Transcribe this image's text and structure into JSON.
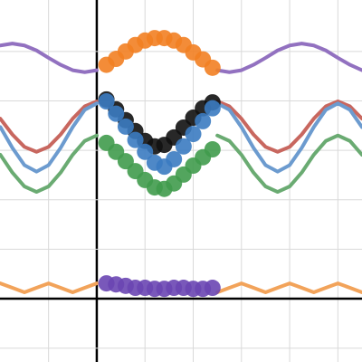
{
  "chart_data": {
    "type": "line",
    "xlim": [
      -2.007,
      5.5
    ],
    "ylim": [
      -1.28,
      6.04
    ],
    "xticks": [
      -1,
      0,
      1,
      2,
      3,
      4,
      5
    ],
    "yticks": [
      -1,
      0,
      1,
      2,
      3,
      4,
      5
    ],
    "grid": true,
    "series": [
      {
        "type": "line",
        "color": "#9271c0",
        "x": [
          -2,
          -1.75,
          -1.5,
          -1.25,
          -1,
          -0.75,
          -0.5,
          -0.25,
          0,
          0.25,
          0.5,
          0.75,
          1,
          1.25,
          1.5,
          1.75,
          2,
          2.25,
          2.5,
          2.75,
          3,
          3.25,
          3.5,
          3.75,
          4,
          4.25,
          4.5,
          4.75,
          5,
          5.25,
          5.5
        ],
        "values": [
          5.12,
          5.16,
          5.12,
          5.02,
          4.87,
          4.73,
          4.62,
          4.58,
          4.62,
          null,
          null,
          null,
          null,
          null,
          null,
          null,
          null,
          null,
          4.62,
          4.58,
          4.62,
          4.73,
          4.87,
          5.02,
          5.12,
          5.16,
          5.12,
          5.02,
          4.87,
          4.73,
          4.62
        ]
      },
      {
        "type": "line",
        "color": "#c8675f",
        "x": [
          -2,
          -1.75,
          -1.5,
          -1.25,
          -1,
          -0.75,
          -0.5,
          -0.25,
          0,
          0.25,
          0.5,
          0.75,
          1,
          1.25,
          1.5,
          1.75,
          2,
          2.25,
          2.5,
          2.75,
          3,
          3.25,
          3.5,
          3.75,
          4,
          4.25,
          4.5,
          4.75,
          5,
          5.25,
          5.5
        ],
        "values": [
          3.64,
          3.32,
          3.07,
          2.97,
          3.07,
          3.32,
          3.64,
          3.89,
          3.99,
          null,
          null,
          null,
          null,
          null,
          null,
          null,
          null,
          null,
          3.99,
          3.89,
          3.64,
          3.32,
          3.07,
          2.97,
          3.07,
          3.32,
          3.64,
          3.89,
          3.99,
          3.89,
          3.64
        ]
      },
      {
        "type": "line",
        "color": "#6c9bcf",
        "x": [
          -2,
          -1.75,
          -1.5,
          -1.25,
          -1,
          -0.75,
          -0.5,
          -0.25,
          0,
          0.25,
          0.5,
          0.75,
          1,
          1.25,
          1.5,
          1.75,
          2,
          2.25,
          2.5,
          2.75,
          3,
          3.25,
          3.5,
          3.75,
          4,
          4.25,
          4.5,
          4.75,
          5,
          5.25,
          5.5
        ],
        "values": [
          3.47,
          3.05,
          2.7,
          2.57,
          2.7,
          3.05,
          3.47,
          3.82,
          3.95,
          null,
          null,
          null,
          null,
          null,
          null,
          null,
          null,
          null,
          3.95,
          3.82,
          3.47,
          3.05,
          2.7,
          2.57,
          2.7,
          3.05,
          3.47,
          3.82,
          3.95,
          3.82,
          3.47
        ]
      },
      {
        "type": "line",
        "color": "#6aab72",
        "x": [
          -2,
          -1.75,
          -1.5,
          -1.25,
          -1,
          -0.75,
          -0.5,
          -0.25,
          0,
          0.25,
          0.5,
          0.75,
          1,
          1.25,
          1.5,
          1.75,
          2,
          2.25,
          2.5,
          2.75,
          3,
          3.25,
          3.5,
          3.75,
          4,
          4.25,
          4.5,
          4.75,
          5,
          5.25,
          5.5
        ],
        "values": [
          2.91,
          2.55,
          2.27,
          2.16,
          2.27,
          2.55,
          2.91,
          3.19,
          3.3,
          null,
          null,
          null,
          null,
          null,
          null,
          null,
          null,
          null,
          3.3,
          3.19,
          2.91,
          2.55,
          2.27,
          2.16,
          2.27,
          2.55,
          2.91,
          3.19,
          3.3,
          3.19,
          2.91
        ]
      },
      {
        "type": "line",
        "color": "#f2a35a",
        "x": [
          -2,
          -1.75,
          -1.5,
          -1.25,
          -1,
          -0.75,
          -0.5,
          -0.25,
          0,
          0.25,
          0.5,
          0.75,
          1,
          1.25,
          1.5,
          1.75,
          2,
          2.25,
          2.5,
          2.75,
          3,
          3.25,
          3.5,
          3.75,
          4,
          4.25,
          4.5,
          4.75,
          5,
          5.25,
          5.5
        ],
        "values": [
          0.31,
          0.22,
          0.13,
          0.22,
          0.31,
          0.22,
          0.13,
          0.22,
          0.31,
          null,
          null,
          null,
          null,
          null,
          null,
          null,
          null,
          null,
          0.13,
          0.22,
          0.31,
          0.22,
          0.13,
          0.22,
          0.31,
          0.22,
          0.13,
          0.22,
          0.31,
          0.22,
          0.13
        ]
      },
      {
        "type": "scatter",
        "color": "#f27f22",
        "x": [
          0.2,
          0.4,
          0.6,
          0.8,
          1.0,
          1.2,
          1.4,
          1.6,
          1.8,
          2.0,
          2.2,
          2.4
        ],
        "values": [
          4.73,
          4.85,
          5.0,
          5.13,
          5.22,
          5.27,
          5.27,
          5.22,
          5.13,
          4.98,
          4.84,
          4.67
        ]
      },
      {
        "type": "scatter",
        "color": "#111111",
        "x": [
          0.2,
          0.4,
          0.6,
          0.8,
          1.0,
          1.2,
          1.4,
          1.6,
          1.8,
          2.0,
          2.2,
          2.4
        ],
        "values": [
          4.03,
          3.83,
          3.61,
          3.39,
          3.19,
          3.08,
          3.11,
          3.26,
          3.46,
          3.66,
          3.85,
          3.97
        ]
      },
      {
        "type": "scatter",
        "color": "#3b7bc1",
        "x": [
          0.2,
          0.4,
          0.6,
          0.8,
          1.0,
          1.2,
          1.4,
          1.6,
          1.8,
          2.0,
          2.2,
          2.4
        ],
        "values": [
          3.99,
          3.74,
          3.48,
          3.21,
          2.97,
          2.75,
          2.67,
          2.82,
          3.08,
          3.33,
          3.59,
          3.85
        ]
      },
      {
        "type": "scatter",
        "color": "#409b4c",
        "x": [
          0.2,
          0.4,
          0.6,
          0.8,
          1.0,
          1.2,
          1.4,
          1.6,
          1.8,
          2.0,
          2.2,
          2.4
        ],
        "values": [
          3.15,
          2.97,
          2.78,
          2.58,
          2.4,
          2.25,
          2.22,
          2.33,
          2.51,
          2.69,
          2.86,
          3.02
        ]
      },
      {
        "type": "scatter",
        "color": "#6a46b2",
        "x": [
          0.2,
          0.4,
          0.6,
          0.8,
          1.0,
          1.2,
          1.4,
          1.6,
          1.8,
          2.0,
          2.2,
          2.4
        ],
        "values": [
          0.31,
          0.29,
          0.26,
          0.22,
          0.22,
          0.2,
          0.2,
          0.22,
          0.22,
          0.2,
          0.2,
          0.22
        ]
      }
    ]
  }
}
